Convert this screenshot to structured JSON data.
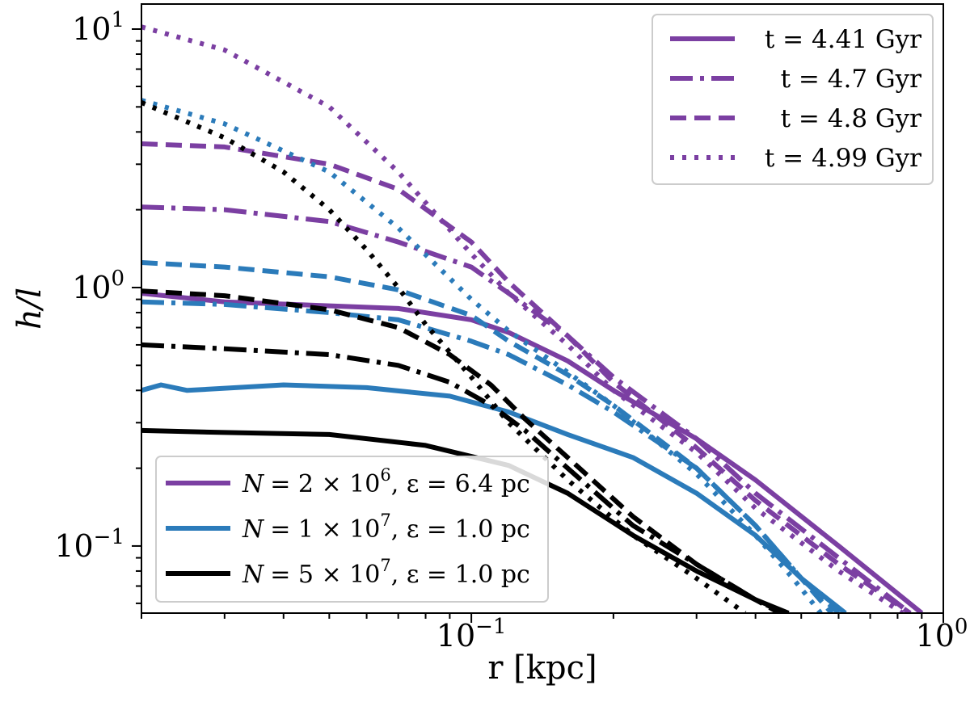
{
  "chart_data": {
    "type": "line",
    "xscale": "log",
    "yscale": "log",
    "xlim": [
      0.02,
      1.0
    ],
    "ylim": [
      0.055,
      12.5
    ],
    "xlabel": "r [kpc]",
    "ylabel": "h/l",
    "xticks": [
      {
        "value": 0.1,
        "base": "10",
        "exp": "−1"
      },
      {
        "value": 1.0,
        "base": "10",
        "exp": "0"
      }
    ],
    "yticks": [
      {
        "value": 0.1,
        "base": "10",
        "exp": "−1"
      },
      {
        "value": 1.0,
        "base": "10",
        "exp": "0"
      },
      {
        "value": 10.0,
        "base": "10",
        "exp": "1"
      }
    ],
    "colors": {
      "purple": "#7b3fa2",
      "blue": "#2b7bba",
      "black": "#000000"
    },
    "legend_time": {
      "position": "upper right",
      "entries": [
        {
          "label": "t = 4.41 Gyr",
          "style": "solid"
        },
        {
          "label": "t = 4.7 Gyr",
          "style": "dashdot"
        },
        {
          "label": "t = 4.8 Gyr",
          "style": "dashed"
        },
        {
          "label": "t = 4.99 Gyr",
          "style": "dotted"
        }
      ]
    },
    "legend_resolution": {
      "position": "lower left",
      "entries": [
        {
          "color": "purple",
          "label_N": "N",
          "label_mant": "= 2 × 10",
          "label_exp": "6",
          "label_eps": ", ε = 6.4 pc"
        },
        {
          "color": "blue",
          "label_N": "N",
          "label_mant": "= 1 × 10",
          "label_exp": "7",
          "label_eps": ", ε = 1.0 pc"
        },
        {
          "color": "black",
          "label_N": "N",
          "label_mant": "= 5 × 10",
          "label_exp": "7",
          "label_eps": ", ε = 1.0 pc"
        }
      ]
    },
    "series": [
      {
        "name": "purple-t4.41",
        "color": "purple",
        "style": "solid",
        "x": [
          0.02,
          0.03,
          0.05,
          0.07,
          0.1,
          0.12,
          0.16,
          0.2,
          0.3,
          0.4,
          0.6,
          0.9
        ],
        "y": [
          0.95,
          0.88,
          0.85,
          0.83,
          0.75,
          0.67,
          0.52,
          0.4,
          0.26,
          0.18,
          0.1,
          0.055
        ]
      },
      {
        "name": "purple-t4.7",
        "color": "purple",
        "style": "dashdot",
        "x": [
          0.02,
          0.03,
          0.05,
          0.07,
          0.1,
          0.12,
          0.16,
          0.2,
          0.3,
          0.4,
          0.6,
          0.85
        ],
        "y": [
          2.05,
          2.0,
          1.8,
          1.5,
          1.2,
          0.95,
          0.65,
          0.45,
          0.26,
          0.16,
          0.09,
          0.055
        ]
      },
      {
        "name": "purple-t4.8",
        "color": "purple",
        "style": "dashed",
        "x": [
          0.02,
          0.03,
          0.05,
          0.07,
          0.1,
          0.12,
          0.16,
          0.2,
          0.3,
          0.4,
          0.6,
          0.85
        ],
        "y": [
          3.6,
          3.5,
          3.0,
          2.4,
          1.5,
          1.05,
          0.65,
          0.43,
          0.24,
          0.15,
          0.085,
          0.055
        ]
      },
      {
        "name": "purple-t4.99",
        "color": "purple",
        "style": "dotted",
        "x": [
          0.02,
          0.03,
          0.05,
          0.07,
          0.1,
          0.12,
          0.16,
          0.2,
          0.3,
          0.4,
          0.6,
          0.82
        ],
        "y": [
          10.2,
          8.3,
          5.0,
          2.8,
          1.35,
          0.95,
          0.6,
          0.4,
          0.23,
          0.14,
          0.08,
          0.055
        ]
      },
      {
        "name": "blue-t4.41",
        "color": "blue",
        "style": "solid",
        "x": [
          0.02,
          0.022,
          0.025,
          0.04,
          0.06,
          0.09,
          0.12,
          0.16,
          0.22,
          0.3,
          0.4,
          0.5,
          0.62
        ],
        "y": [
          0.4,
          0.42,
          0.4,
          0.42,
          0.41,
          0.38,
          0.33,
          0.27,
          0.22,
          0.16,
          0.11,
          0.075,
          0.055
        ]
      },
      {
        "name": "blue-t4.7",
        "color": "blue",
        "style": "dashdot",
        "x": [
          0.02,
          0.03,
          0.05,
          0.07,
          0.1,
          0.12,
          0.16,
          0.2,
          0.3,
          0.4,
          0.5,
          0.6
        ],
        "y": [
          0.88,
          0.86,
          0.8,
          0.75,
          0.62,
          0.55,
          0.42,
          0.33,
          0.2,
          0.12,
          0.075,
          0.055
        ]
      },
      {
        "name": "blue-t4.8",
        "color": "blue",
        "style": "dashed",
        "x": [
          0.02,
          0.03,
          0.05,
          0.07,
          0.1,
          0.12,
          0.16,
          0.2,
          0.3,
          0.4,
          0.5,
          0.58
        ],
        "y": [
          1.25,
          1.2,
          1.1,
          0.98,
          0.78,
          0.62,
          0.46,
          0.35,
          0.2,
          0.12,
          0.075,
          0.055
        ]
      },
      {
        "name": "blue-t4.99",
        "color": "blue",
        "style": "dotted",
        "x": [
          0.02,
          0.03,
          0.05,
          0.07,
          0.1,
          0.12,
          0.16,
          0.2,
          0.3,
          0.4,
          0.48,
          0.55
        ],
        "y": [
          5.3,
          4.3,
          2.8,
          1.7,
          0.9,
          0.68,
          0.47,
          0.35,
          0.19,
          0.11,
          0.075,
          0.055
        ]
      },
      {
        "name": "black-t4.41",
        "color": "black",
        "style": "solid",
        "x": [
          0.02,
          0.03,
          0.05,
          0.08,
          0.12,
          0.16,
          0.22,
          0.3,
          0.4,
          0.47
        ],
        "y": [
          0.28,
          0.275,
          0.27,
          0.245,
          0.205,
          0.16,
          0.11,
          0.08,
          0.062,
          0.055
        ]
      },
      {
        "name": "black-t4.7",
        "color": "black",
        "style": "dashdot",
        "x": [
          0.02,
          0.03,
          0.05,
          0.07,
          0.09,
          0.11,
          0.13,
          0.16,
          0.22,
          0.3,
          0.4,
          0.46
        ],
        "y": [
          0.6,
          0.58,
          0.55,
          0.5,
          0.43,
          0.35,
          0.28,
          0.2,
          0.12,
          0.085,
          0.062,
          0.055
        ]
      },
      {
        "name": "black-t4.8",
        "color": "black",
        "style": "dashed",
        "x": [
          0.02,
          0.03,
          0.05,
          0.07,
          0.09,
          0.11,
          0.13,
          0.16,
          0.22,
          0.3,
          0.4,
          0.45
        ],
        "y": [
          0.97,
          0.93,
          0.82,
          0.7,
          0.55,
          0.42,
          0.31,
          0.22,
          0.13,
          0.085,
          0.062,
          0.055
        ]
      },
      {
        "name": "black-t4.99",
        "color": "black",
        "style": "dotted",
        "x": [
          0.02,
          0.03,
          0.04,
          0.05,
          0.06,
          0.07,
          0.08,
          0.1,
          0.12,
          0.16,
          0.22,
          0.3,
          0.38
        ],
        "y": [
          5.2,
          3.8,
          2.8,
          2.0,
          1.4,
          1.0,
          0.72,
          0.45,
          0.3,
          0.18,
          0.11,
          0.075,
          0.055
        ]
      }
    ]
  }
}
